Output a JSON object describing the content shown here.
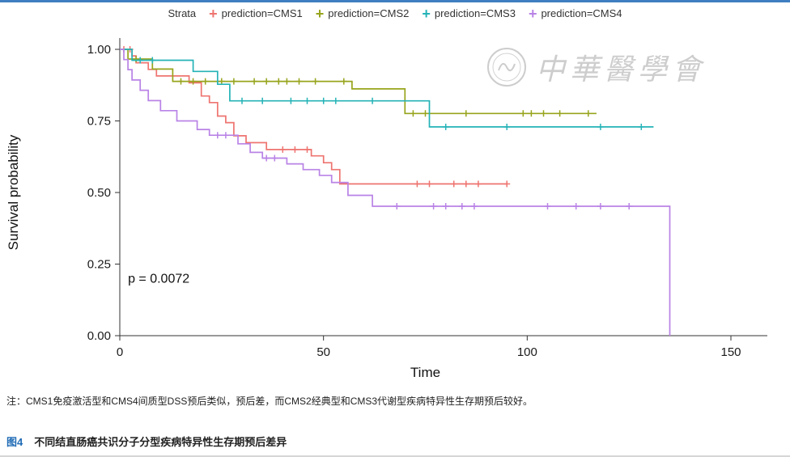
{
  "legend": {
    "title": "Strata",
    "items": [
      {
        "label": "prediction=CMS1",
        "color": "#ee7470"
      },
      {
        "label": "prediction=CMS2",
        "color": "#97a41c"
      },
      {
        "label": "prediction=CMS3",
        "color": "#25b3b7"
      },
      {
        "label": "prediction=CMS4",
        "color": "#b983e6"
      }
    ]
  },
  "watermark": {
    "text": "中華醫學會"
  },
  "chart_data": {
    "type": "line",
    "subtype": "kaplan-meier-step",
    "title": "",
    "xlabel": "Time",
    "ylabel": "Survival probability",
    "xlim": [
      0,
      150
    ],
    "ylim": [
      0,
      1
    ],
    "xticks": [
      0,
      50,
      100,
      150
    ],
    "yticks": [
      0.0,
      0.25,
      0.5,
      0.75,
      1.0
    ],
    "grid": false,
    "legend_position": "top",
    "annotation": "p = 0.0072",
    "series": [
      {
        "name": "prediction=CMS1",
        "color": "#ee7470",
        "steps": [
          [
            0,
            1.0
          ],
          [
            3,
            1.0
          ],
          [
            3,
            0.977
          ],
          [
            4,
            0.977
          ],
          [
            4,
            0.953
          ],
          [
            7,
            0.953
          ],
          [
            7,
            0.93
          ],
          [
            9,
            0.93
          ],
          [
            9,
            0.907
          ],
          [
            17,
            0.907
          ],
          [
            17,
            0.883
          ],
          [
            20,
            0.883
          ],
          [
            20,
            0.837
          ],
          [
            22,
            0.837
          ],
          [
            22,
            0.814
          ],
          [
            24,
            0.814
          ],
          [
            24,
            0.767
          ],
          [
            26,
            0.767
          ],
          [
            26,
            0.744
          ],
          [
            28,
            0.744
          ],
          [
            28,
            0.698
          ],
          [
            31,
            0.698
          ],
          [
            31,
            0.674
          ],
          [
            36,
            0.674
          ],
          [
            36,
            0.65
          ],
          [
            47,
            0.65
          ],
          [
            47,
            0.628
          ],
          [
            50,
            0.628
          ],
          [
            50,
            0.604
          ],
          [
            52,
            0.604
          ],
          [
            52,
            0.58
          ],
          [
            54,
            0.58
          ],
          [
            54,
            0.53
          ],
          [
            95,
            0.53
          ]
        ],
        "censors": [
          [
            1,
            1.0
          ],
          [
            2.5,
            1.0
          ],
          [
            40,
            0.65
          ],
          [
            43,
            0.65
          ],
          [
            46,
            0.65
          ],
          [
            73,
            0.53
          ],
          [
            76,
            0.53
          ],
          [
            82,
            0.53
          ],
          [
            85,
            0.53
          ],
          [
            88,
            0.53
          ],
          [
            95,
            0.53
          ]
        ]
      },
      {
        "name": "prediction=CMS2",
        "color": "#97a41c",
        "steps": [
          [
            0,
            1.0
          ],
          [
            2,
            1.0
          ],
          [
            2,
            0.966
          ],
          [
            8,
            0.966
          ],
          [
            8,
            0.931
          ],
          [
            13,
            0.931
          ],
          [
            13,
            0.888
          ],
          [
            57,
            0.888
          ],
          [
            57,
            0.862
          ],
          [
            70,
            0.862
          ],
          [
            70,
            0.776
          ],
          [
            117,
            0.776
          ]
        ],
        "censors": [
          [
            4,
            0.966
          ],
          [
            15,
            0.888
          ],
          [
            18,
            0.888
          ],
          [
            21,
            0.888
          ],
          [
            25,
            0.888
          ],
          [
            28,
            0.888
          ],
          [
            33,
            0.888
          ],
          [
            36,
            0.888
          ],
          [
            39,
            0.888
          ],
          [
            41,
            0.888
          ],
          [
            44,
            0.888
          ],
          [
            48,
            0.888
          ],
          [
            55,
            0.888
          ],
          [
            72,
            0.776
          ],
          [
            75,
            0.776
          ],
          [
            85,
            0.776
          ],
          [
            99,
            0.776
          ],
          [
            101,
            0.776
          ],
          [
            104,
            0.776
          ],
          [
            108,
            0.776
          ],
          [
            115,
            0.776
          ]
        ]
      },
      {
        "name": "prediction=CMS3",
        "color": "#25b3b7",
        "steps": [
          [
            0,
            1.0
          ],
          [
            3,
            1.0
          ],
          [
            3,
            0.962
          ],
          [
            18,
            0.962
          ],
          [
            18,
            0.923
          ],
          [
            24,
            0.923
          ],
          [
            24,
            0.878
          ],
          [
            27,
            0.878
          ],
          [
            27,
            0.82
          ],
          [
            76,
            0.82
          ],
          [
            76,
            0.729
          ],
          [
            131,
            0.729
          ]
        ],
        "censors": [
          [
            5,
            0.962
          ],
          [
            8,
            0.962
          ],
          [
            30,
            0.82
          ],
          [
            35,
            0.82
          ],
          [
            42,
            0.82
          ],
          [
            46,
            0.82
          ],
          [
            50,
            0.82
          ],
          [
            53,
            0.82
          ],
          [
            62,
            0.82
          ],
          [
            80,
            0.729
          ],
          [
            95,
            0.729
          ],
          [
            118,
            0.729
          ],
          [
            128,
            0.729
          ]
        ]
      },
      {
        "name": "prediction=CMS4",
        "color": "#b983e6",
        "steps": [
          [
            0,
            1.0
          ],
          [
            1,
            1.0
          ],
          [
            1,
            0.964
          ],
          [
            2,
            0.964
          ],
          [
            2,
            0.929
          ],
          [
            3,
            0.929
          ],
          [
            3,
            0.893
          ],
          [
            5,
            0.893
          ],
          [
            5,
            0.857
          ],
          [
            7,
            0.857
          ],
          [
            7,
            0.821
          ],
          [
            10,
            0.821
          ],
          [
            10,
            0.786
          ],
          [
            14,
            0.786
          ],
          [
            14,
            0.75
          ],
          [
            19,
            0.75
          ],
          [
            19,
            0.72
          ],
          [
            22,
            0.72
          ],
          [
            22,
            0.7
          ],
          [
            29,
            0.7
          ],
          [
            29,
            0.67
          ],
          [
            32,
            0.67
          ],
          [
            32,
            0.64
          ],
          [
            35,
            0.64
          ],
          [
            35,
            0.62
          ],
          [
            41,
            0.62
          ],
          [
            41,
            0.6
          ],
          [
            45,
            0.6
          ],
          [
            45,
            0.58
          ],
          [
            49,
            0.58
          ],
          [
            49,
            0.56
          ],
          [
            52,
            0.56
          ],
          [
            52,
            0.535
          ],
          [
            56,
            0.535
          ],
          [
            56,
            0.49
          ],
          [
            62,
            0.49
          ],
          [
            62,
            0.452
          ],
          [
            135,
            0.452
          ],
          [
            135,
            0.0
          ]
        ],
        "censors": [
          [
            24,
            0.7
          ],
          [
            26,
            0.7
          ],
          [
            36,
            0.62
          ],
          [
            38,
            0.62
          ],
          [
            68,
            0.452
          ],
          [
            77,
            0.452
          ],
          [
            80,
            0.452
          ],
          [
            84,
            0.452
          ],
          [
            87,
            0.452
          ],
          [
            105,
            0.452
          ],
          [
            112,
            0.452
          ],
          [
            118,
            0.452
          ],
          [
            125,
            0.452
          ]
        ]
      }
    ]
  },
  "note": "注：CMS1免疫激活型和CMS4间质型DSS预后类似，预后差，而CMS2经典型和CMS3代谢型疾病特异性生存期预后较好。",
  "caption": {
    "label": "图4",
    "text": "不同结直肠癌共识分子分型疾病特异性生存期预后差异"
  }
}
